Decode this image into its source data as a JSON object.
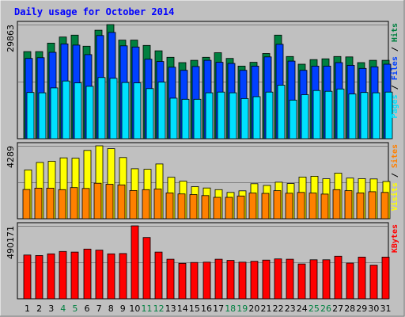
{
  "chart_data": {
    "type": "bar",
    "title": "Daily usage for October 2014",
    "colors": {
      "hits": "#008040",
      "files": "#0040ff",
      "pages": "#00e0ff",
      "visits": "#ffff00",
      "sites": "#ff8000",
      "kbytes": "#ff0000",
      "title": "#0000ff",
      "weekend": "#008040",
      "weekday": "#000000"
    },
    "days": [
      "1",
      "2",
      "3",
      "4",
      "5",
      "6",
      "7",
      "8",
      "9",
      "10",
      "11",
      "12",
      "13",
      "14",
      "15",
      "16",
      "17",
      "18",
      "19",
      "20",
      "21",
      "22",
      "23",
      "24",
      "25",
      "26",
      "27",
      "28",
      "29",
      "30",
      "31"
    ],
    "weekend_days": [
      "4",
      "5",
      "11",
      "12",
      "18",
      "19",
      "25",
      "26"
    ],
    "panels": [
      {
        "id": "top",
        "max_label": "29863",
        "ylim": [
          0,
          29863
        ],
        "legend": [
          "Hits",
          "Files",
          "Pages"
        ],
        "series": [
          {
            "name": "Hits",
            "values": [
              22800,
              22800,
              25000,
              26600,
              27100,
              24200,
              28400,
              29863,
              25800,
              25800,
              24400,
              23000,
              21300,
              19900,
              20500,
              21300,
              22500,
              21000,
              19000,
              20000,
              22300,
              27100,
              21500,
              19500,
              20700,
              20900,
              21500,
              21400,
              19900,
              20500,
              20500
            ]
          },
          {
            "name": "Files",
            "values": [
              21000,
              21200,
              22600,
              24800,
              24500,
              22000,
              27000,
              27800,
              24300,
              24000,
              20800,
              20200,
              18700,
              17900,
              18900,
              20500,
              20000,
              19700,
              17900,
              19000,
              21400,
              24700,
              20300,
              17900,
              19000,
              19000,
              19900,
              19200,
              18400,
              18800,
              19500
            ]
          },
          {
            "name": "Pages",
            "values": [
              12100,
              12000,
              13300,
              15100,
              14600,
              13700,
              16000,
              15800,
              14700,
              14600,
              13100,
              14800,
              10600,
              10300,
              10300,
              12000,
              12200,
              12000,
              10500,
              11000,
              12200,
              14000,
              10100,
              11500,
              12600,
              12400,
              13000,
              11700,
              12100,
              12000,
              12200
            ]
          }
        ]
      },
      {
        "id": "mid",
        "max_label": "4289",
        "ylim": [
          0,
          4289
        ],
        "legend": [
          "Sites",
          "Visits"
        ],
        "series": [
          {
            "name": "Visits",
            "values": [
              2870,
              3310,
              3380,
              3580,
              3560,
              4020,
              4289,
              4120,
              3600,
              2940,
              2910,
              3220,
              2440,
              2210,
              1890,
              1810,
              1710,
              1550,
              1640,
              2060,
              1960,
              2150,
              2070,
              2450,
              2500,
              2350,
              2680,
              2390,
              2360,
              2340,
              2190
            ]
          },
          {
            "name": "Sites",
            "values": [
              1720,
              1800,
              1800,
              1710,
              1830,
              1780,
              2090,
              2030,
              1990,
              1660,
              1710,
              1750,
              1520,
              1460,
              1420,
              1360,
              1260,
              1260,
              1340,
              1510,
              1490,
              1650,
              1500,
              1550,
              1510,
              1450,
              1710,
              1650,
              1520,
              1590,
              1550
            ]
          }
        ]
      },
      {
        "id": "bot",
        "max_label": "490171",
        "ylim": [
          0,
          490171
        ],
        "legend": [
          "KBytes"
        ],
        "series": [
          {
            "name": "KBytes",
            "values": [
              294000,
              291000,
              302000,
              318000,
              314000,
              334000,
              327000,
              302000,
              304000,
              490171,
              412000,
              314000,
              266000,
              238000,
              244000,
              246000,
              266000,
              258000,
              246000,
              252000,
              260000,
              268000,
              266000,
              234000,
              262000,
              262000,
              286000,
              240000,
              280000,
              226000,
              280000
            ]
          }
        ]
      }
    ]
  }
}
